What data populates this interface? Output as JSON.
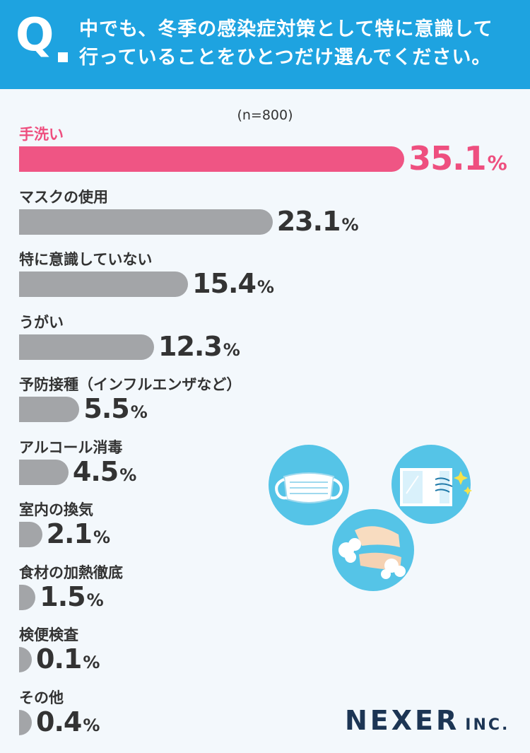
{
  "header": {
    "q_mark": "Q",
    "question_line1": "中でも、冬季の感染症対策として特に意識して",
    "question_line2": "行っていることをひとつだけ選んでください。"
  },
  "sample_label": "(n=800)",
  "colors": {
    "highlight": "#ef5584",
    "bar": "#a3a5a8",
    "header": "#1ea3e0",
    "logo": "#1c3554"
  },
  "chart_data": {
    "type": "bar",
    "orientation": "horizontal",
    "unit": "%",
    "categories": [
      "手洗い",
      "マスクの使用",
      "特に意識していない",
      "うがい",
      "予防接種（インフルエンザなど）",
      "アルコール消毒",
      "室内の換気",
      "食材の加熱徹底",
      "検便検査",
      "その他"
    ],
    "values": [
      35.1,
      23.1,
      15.4,
      12.3,
      5.5,
      4.5,
      2.1,
      1.5,
      0.1,
      0.4
    ],
    "value_labels": [
      "35.1",
      "23.1",
      "15.4",
      "12.3",
      "5.5",
      "4.5",
      "2.1",
      "1.5",
      "0.1",
      "0.4"
    ],
    "highlight_index": 0
  },
  "logo": {
    "name": "NEXER",
    "suffix": "INC."
  },
  "illustration_icons": [
    "face-mask-icon",
    "window-ventilation-icon",
    "hand-washing-icon"
  ]
}
